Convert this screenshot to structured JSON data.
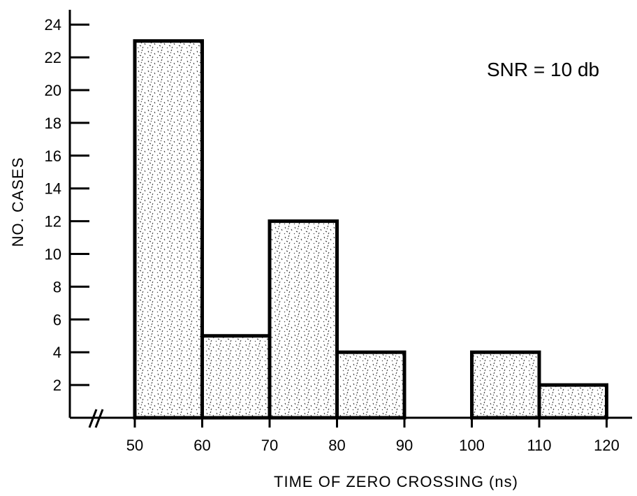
{
  "chart_data": {
    "type": "bar",
    "title": "",
    "xlabel": "TIME OF ZERO CROSSING (ns)",
    "ylabel": "NO. CASES",
    "annotation": "SNR = 10 db",
    "bins": [
      {
        "from": 50,
        "to": 60,
        "value": 23
      },
      {
        "from": 60,
        "to": 70,
        "value": 5
      },
      {
        "from": 70,
        "to": 80,
        "value": 12
      },
      {
        "from": 80,
        "to": 90,
        "value": 4
      },
      {
        "from": 100,
        "to": 110,
        "value": 4
      },
      {
        "from": 110,
        "to": 120,
        "value": 2
      }
    ],
    "x_ticks": [
      50,
      60,
      70,
      80,
      90,
      100,
      110,
      120
    ],
    "y_ticks": [
      2,
      4,
      6,
      8,
      10,
      12,
      14,
      16,
      18,
      20,
      22,
      24
    ],
    "xlim": [
      40,
      125
    ],
    "ylim": [
      0,
      25
    ],
    "axis_break": true,
    "grid": false,
    "fill": "stippled",
    "colors": {
      "bar_edge": "#000000",
      "background": "#ffffff"
    }
  }
}
